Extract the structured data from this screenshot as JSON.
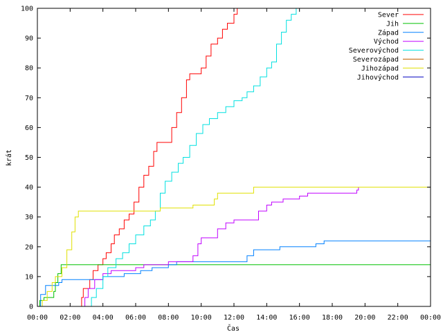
{
  "chart_data": {
    "type": "line",
    "xlabel": "Čas",
    "ylabel": "krát",
    "xlim": [
      0,
      24
    ],
    "ylim": [
      0,
      100
    ],
    "x_ticks": [
      {
        "value": 0,
        "label": "00:00"
      },
      {
        "value": 2,
        "label": "02:00"
      },
      {
        "value": 4,
        "label": "04:00"
      },
      {
        "value": 6,
        "label": "06:00"
      },
      {
        "value": 8,
        "label": "08:00"
      },
      {
        "value": 10,
        "label": "10:00"
      },
      {
        "value": 12,
        "label": "12:00"
      },
      {
        "value": 14,
        "label": "14:00"
      },
      {
        "value": 16,
        "label": "16:00"
      },
      {
        "value": 18,
        "label": "18:00"
      },
      {
        "value": 20,
        "label": "20:00"
      },
      {
        "value": 22,
        "label": "22:00"
      },
      {
        "value": 24,
        "label": "00:00"
      }
    ],
    "y_ticks": [
      {
        "value": 0,
        "label": "0"
      },
      {
        "value": 10,
        "label": "10"
      },
      {
        "value": 20,
        "label": "20"
      },
      {
        "value": 30,
        "label": "30"
      },
      {
        "value": 40,
        "label": "40"
      },
      {
        "value": 50,
        "label": "50"
      },
      {
        "value": 60,
        "label": "60"
      },
      {
        "value": 70,
        "label": "70"
      },
      {
        "value": 80,
        "label": "80"
      },
      {
        "value": 90,
        "label": "90"
      },
      {
        "value": 100,
        "label": "100"
      }
    ],
    "grid": false,
    "legend_position": "top-right",
    "series": [
      {
        "name": "Sever",
        "color": "#ff0000",
        "points": [
          [
            2.55,
            0
          ],
          [
            2.7,
            3
          ],
          [
            2.8,
            6
          ],
          [
            3.1,
            6
          ],
          [
            3.2,
            9
          ],
          [
            3.4,
            12
          ],
          [
            3.7,
            14
          ],
          [
            4.0,
            16
          ],
          [
            4.2,
            18
          ],
          [
            4.5,
            21
          ],
          [
            4.7,
            24
          ],
          [
            5.0,
            26
          ],
          [
            5.3,
            29
          ],
          [
            5.6,
            31
          ],
          [
            5.9,
            35
          ],
          [
            6.2,
            40
          ],
          [
            6.5,
            44
          ],
          [
            6.8,
            47
          ],
          [
            7.1,
            52
          ],
          [
            7.3,
            55
          ],
          [
            7.8,
            55
          ],
          [
            8.1,
            55
          ],
          [
            8.2,
            60
          ],
          [
            8.5,
            65
          ],
          [
            8.8,
            70
          ],
          [
            9.1,
            76
          ],
          [
            9.3,
            78
          ],
          [
            9.7,
            78
          ],
          [
            10.0,
            80
          ],
          [
            10.3,
            84
          ],
          [
            10.6,
            88
          ],
          [
            11.0,
            90
          ],
          [
            11.3,
            93
          ],
          [
            11.6,
            95
          ],
          [
            12.0,
            98
          ],
          [
            12.2,
            100
          ]
        ]
      },
      {
        "name": "Jih",
        "color": "#00c000",
        "points": [
          [
            0,
            0
          ],
          [
            0.15,
            2
          ],
          [
            0.4,
            3
          ],
          [
            0.9,
            3
          ],
          [
            1.0,
            5
          ],
          [
            1.1,
            8
          ],
          [
            1.25,
            11
          ],
          [
            1.45,
            14
          ],
          [
            1.6,
            14
          ],
          [
            24,
            14
          ]
        ]
      },
      {
        "name": "Západ",
        "color": "#0080ff",
        "points": [
          [
            0,
            0
          ],
          [
            0.2,
            4
          ],
          [
            0.5,
            7
          ],
          [
            1.2,
            7
          ],
          [
            1.3,
            8
          ],
          [
            1.5,
            9
          ],
          [
            3.8,
            9
          ],
          [
            4.0,
            10
          ],
          [
            5.0,
            10
          ],
          [
            5.3,
            11
          ],
          [
            6.0,
            11
          ],
          [
            6.3,
            12
          ],
          [
            7.0,
            13
          ],
          [
            7.5,
            13
          ],
          [
            8.0,
            14
          ],
          [
            8.5,
            15
          ],
          [
            9.0,
            15
          ],
          [
            12.5,
            15
          ],
          [
            12.8,
            17
          ],
          [
            13.2,
            19
          ],
          [
            14.5,
            19
          ],
          [
            14.8,
            20
          ],
          [
            16.5,
            20
          ],
          [
            17.0,
            21
          ],
          [
            17.5,
            22
          ],
          [
            24,
            22
          ]
        ]
      },
      {
        "name": "Východ",
        "color": "#c000ff",
        "points": [
          [
            2.7,
            0
          ],
          [
            2.9,
            3
          ],
          [
            3.1,
            6
          ],
          [
            3.5,
            9
          ],
          [
            4.0,
            11
          ],
          [
            4.5,
            12
          ],
          [
            5.5,
            12
          ],
          [
            6.0,
            13
          ],
          [
            6.5,
            14
          ],
          [
            7.5,
            14
          ],
          [
            8.0,
            15
          ],
          [
            9.0,
            15
          ],
          [
            9.5,
            17
          ],
          [
            9.8,
            21
          ],
          [
            10.0,
            23
          ],
          [
            10.6,
            23
          ],
          [
            11.0,
            26
          ],
          [
            11.5,
            28
          ],
          [
            12.0,
            29
          ],
          [
            13.0,
            29
          ],
          [
            13.5,
            32
          ],
          [
            14.0,
            34
          ],
          [
            14.3,
            35
          ],
          [
            15.0,
            36
          ],
          [
            16.0,
            37
          ],
          [
            16.5,
            38
          ],
          [
            19.0,
            38
          ],
          [
            19.5,
            39
          ],
          [
            19.6,
            40
          ]
        ]
      },
      {
        "name": "Severovýchod",
        "color": "#00e0e0",
        "points": [
          [
            3.0,
            0
          ],
          [
            3.3,
            3
          ],
          [
            3.6,
            6
          ],
          [
            4.0,
            10
          ],
          [
            4.3,
            13
          ],
          [
            4.8,
            16
          ],
          [
            5.2,
            18
          ],
          [
            5.6,
            21
          ],
          [
            6.0,
            24
          ],
          [
            6.5,
            27
          ],
          [
            6.9,
            29
          ],
          [
            7.2,
            32
          ],
          [
            7.5,
            38
          ],
          [
            7.8,
            42
          ],
          [
            8.2,
            45
          ],
          [
            8.6,
            48
          ],
          [
            8.9,
            50
          ],
          [
            9.3,
            54
          ],
          [
            9.7,
            58
          ],
          [
            10.1,
            61
          ],
          [
            10.5,
            63
          ],
          [
            11.0,
            65
          ],
          [
            11.5,
            67
          ],
          [
            12.0,
            69
          ],
          [
            12.5,
            70
          ],
          [
            12.8,
            72
          ],
          [
            13.2,
            74
          ],
          [
            13.6,
            77
          ],
          [
            14.0,
            80
          ],
          [
            14.3,
            82
          ],
          [
            14.6,
            88
          ],
          [
            14.9,
            92
          ],
          [
            15.2,
            96
          ],
          [
            15.5,
            98
          ],
          [
            15.8,
            100
          ],
          [
            16.2,
            100
          ]
        ]
      },
      {
        "name": "Severozápad",
        "color": "#c06000",
        "points": []
      },
      {
        "name": "Jihozápad",
        "color": "#e0e000",
        "points": [
          [
            0,
            0
          ],
          [
            0.3,
            2
          ],
          [
            0.6,
            5
          ],
          [
            0.9,
            8
          ],
          [
            1.1,
            10
          ],
          [
            1.5,
            13
          ],
          [
            1.8,
            19
          ],
          [
            2.1,
            25
          ],
          [
            2.3,
            30
          ],
          [
            2.5,
            32
          ],
          [
            6.5,
            32
          ],
          [
            7.5,
            33
          ],
          [
            9.0,
            33
          ],
          [
            9.5,
            34
          ],
          [
            10.5,
            34
          ],
          [
            10.8,
            36
          ],
          [
            11.0,
            38
          ],
          [
            13.0,
            38
          ],
          [
            13.2,
            40
          ],
          [
            24,
            40
          ]
        ]
      },
      {
        "name": "Jihovýchod",
        "color": "#0000c0",
        "points": []
      }
    ]
  }
}
